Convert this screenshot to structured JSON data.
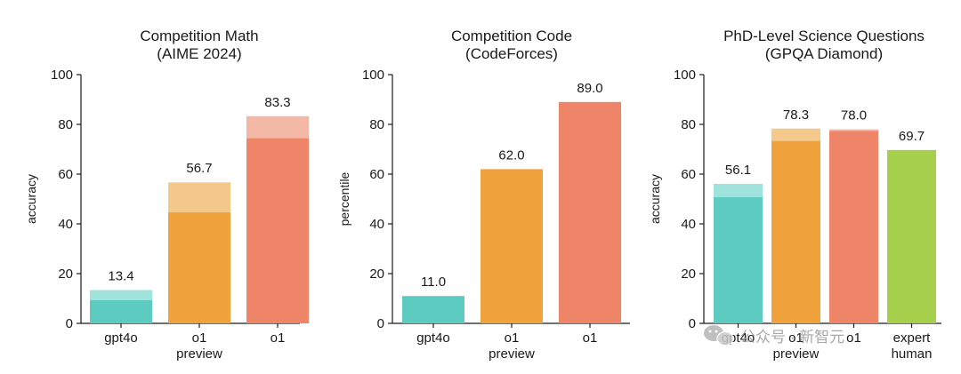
{
  "colors": {
    "teal": "#5ecbc1",
    "teal_light": "#a0e2dc",
    "orange": "#f0a23c",
    "orange_light": "#f5c98b",
    "salmon": "#ee8468",
    "salmon_light": "#f3b7a6",
    "green": "#a6d04b",
    "axis": "#1a1a1a"
  },
  "watermark": {
    "text": "公众号 · 新智元",
    "icon": "wechat-icon"
  },
  "chart_data": [
    {
      "type": "bar",
      "title": [
        "Competition Math",
        "(AIME 2024)"
      ],
      "ylabel": "accuracy",
      "ylim": [
        0,
        100
      ],
      "yticks": [
        0,
        20,
        40,
        60,
        80,
        100
      ],
      "categories": [
        [
          "gpt4o"
        ],
        [
          "o1",
          "preview"
        ],
        [
          "o1"
        ]
      ],
      "values": [
        13.4,
        56.7,
        83.3
      ],
      "value_labels": [
        "13.4",
        "56.7",
        "83.3"
      ],
      "base_values": [
        9.3,
        44.6,
        74.4
      ],
      "colors": [
        "teal",
        "orange",
        "salmon"
      ]
    },
    {
      "type": "bar",
      "title": [
        "Competition Code",
        "(CodeForces)"
      ],
      "ylabel": "percentile",
      "ylim": [
        0,
        100
      ],
      "yticks": [
        0,
        20,
        40,
        60,
        80,
        100
      ],
      "categories": [
        [
          "gpt4o"
        ],
        [
          "o1",
          "preview"
        ],
        [
          "o1"
        ]
      ],
      "values": [
        11.0,
        62.0,
        89.0
      ],
      "value_labels": [
        "11.0",
        "62.0",
        "89.0"
      ],
      "base_values": [
        null,
        null,
        null
      ],
      "colors": [
        "teal",
        "orange",
        "salmon"
      ]
    },
    {
      "type": "bar",
      "title": [
        "PhD-Level Science Questions",
        "(GPQA Diamond)"
      ],
      "ylabel": "accuracy",
      "ylim": [
        0,
        100
      ],
      "yticks": [
        0,
        20,
        40,
        60,
        80,
        100
      ],
      "categories": [
        [
          "gpt4o"
        ],
        [
          "o1",
          "preview"
        ],
        [
          "o1"
        ],
        [
          "expert",
          "human"
        ]
      ],
      "values": [
        56.1,
        78.3,
        78.0,
        69.7
      ],
      "value_labels": [
        "56.1",
        "78.3",
        "78.0",
        "69.7"
      ],
      "base_values": [
        50.7,
        73.3,
        77.3,
        null
      ],
      "colors": [
        "teal",
        "orange",
        "salmon",
        "green"
      ]
    }
  ]
}
